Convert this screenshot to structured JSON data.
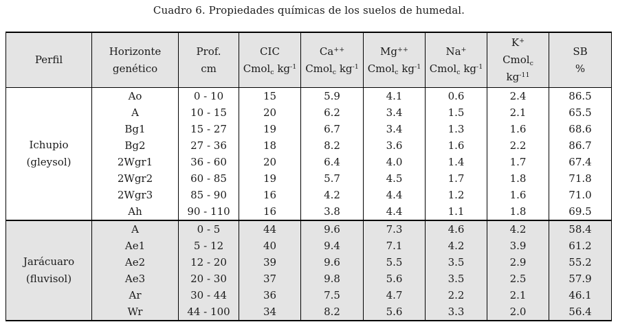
{
  "title": "Cuadro 6. Propiedades químicas de los suelos de humedal.",
  "colors": {
    "header_background": "#e4e4e4",
    "section2_background": "#e4e4e4",
    "border": "#000000",
    "text": "#1a1a1a"
  },
  "table": {
    "col_ids": [
      "horizonte",
      "prof",
      "cic",
      "ca",
      "mg",
      "na",
      "k",
      "sb"
    ],
    "headers": [
      {
        "id": "perfil",
        "lines": [
          [
            {
              "t": "Perfil"
            }
          ]
        ]
      },
      {
        "id": "horizonte-genetico",
        "lines": [
          [
            {
              "t": "Horizonte"
            }
          ],
          [
            {
              "t": "genético"
            }
          ]
        ]
      },
      {
        "id": "prof-cm",
        "lines": [
          [
            {
              "t": "Prof."
            }
          ],
          [
            {
              "t": "cm"
            }
          ]
        ]
      },
      {
        "id": "cic",
        "lines": [
          [
            {
              "t": "CIC"
            }
          ],
          [
            {
              "t": "Cmol"
            },
            {
              "t": "c",
              "s": "sub"
            },
            {
              "t": " kg"
            },
            {
              "t": "-1",
              "s": "sup"
            }
          ]
        ]
      },
      {
        "id": "ca",
        "lines": [
          [
            {
              "t": "Ca"
            },
            {
              "t": "++",
              "s": "sup"
            }
          ],
          [
            {
              "t": "Cmol"
            },
            {
              "t": "c",
              "s": "sub"
            },
            {
              "t": " kg"
            },
            {
              "t": "-1",
              "s": "sup"
            }
          ]
        ]
      },
      {
        "id": "mg",
        "lines": [
          [
            {
              "t": "Mg"
            },
            {
              "t": "++",
              "s": "sup"
            }
          ],
          [
            {
              "t": "Cmol"
            },
            {
              "t": "c",
              "s": "sub"
            },
            {
              "t": " kg"
            },
            {
              "t": "-1",
              "s": "sup"
            }
          ]
        ]
      },
      {
        "id": "na",
        "lines": [
          [
            {
              "t": "Na"
            },
            {
              "t": "+",
              "s": "sup"
            }
          ],
          [
            {
              "t": "Cmol"
            },
            {
              "t": "c",
              "s": "sub"
            },
            {
              "t": " kg"
            },
            {
              "t": "-1",
              "s": "sup"
            }
          ]
        ]
      },
      {
        "id": "k",
        "lines": [
          [
            {
              "t": "K"
            },
            {
              "t": "+",
              "s": "sup"
            }
          ],
          [
            {
              "t": "Cmol"
            },
            {
              "t": "c",
              "s": "sub"
            }
          ],
          [
            {
              "t": "kg"
            },
            {
              "t": "-11",
              "s": "sup"
            }
          ]
        ]
      },
      {
        "id": "sb",
        "lines": [
          [
            {
              "t": "SB"
            }
          ],
          [
            {
              "t": "%"
            }
          ]
        ]
      }
    ],
    "sections": [
      {
        "id": "ichupio",
        "perfil": [
          "Ichupio",
          "(gleysol)"
        ],
        "shaded": false,
        "rows": [
          [
            "Ao",
            "0 - 10",
            "15",
            "5.9",
            "4.1",
            "0.6",
            "2.4",
            "86.5"
          ],
          [
            "A",
            "10 - 15",
            "20",
            "6.2",
            "3.4",
            "1.5",
            "2.1",
            "65.5"
          ],
          [
            "Bg1",
            "15 - 27",
            "19",
            "6.7",
            "3.4",
            "1.3",
            "1.6",
            "68.6"
          ],
          [
            "Bg2",
            "27 - 36",
            "18",
            "8.2",
            "3.6",
            "1.6",
            "2.2",
            "86.7"
          ],
          [
            "2Wgr1",
            "36 - 60",
            "20",
            "6.4",
            "4.0",
            "1.4",
            "1.7",
            "67.4"
          ],
          [
            "2Wgr2",
            "60 - 85",
            "19",
            "5.7",
            "4.5",
            "1.7",
            "1.8",
            "71.8"
          ],
          [
            "2Wgr3",
            "85 - 90",
            "16",
            "4.2",
            "4.4",
            "1.2",
            "1.6",
            "71.0"
          ],
          [
            "Ah",
            "90 - 110",
            "16",
            "3.8",
            "4.4",
            "1.1",
            "1.8",
            "69.5"
          ]
        ]
      },
      {
        "id": "jaracuaro",
        "perfil": [
          "Jarácuaro",
          "(fluvisol)"
        ],
        "shaded": true,
        "rows": [
          [
            "A",
            "0 - 5",
            "44",
            "9.6",
            "7.3",
            "4.6",
            "4.2",
            "58.4"
          ],
          [
            "Ae1",
            "5 - 12",
            "40",
            "9.4",
            "7.1",
            "4.2",
            "3.9",
            "61.2"
          ],
          [
            "Ae2",
            "12 - 20",
            "39",
            "9.6",
            "5.5",
            "3.5",
            "2.9",
            "55.2"
          ],
          [
            "Ae3",
            "20 - 30",
            "37",
            "9.8",
            "5.6",
            "3.5",
            "2.5",
            "57.9"
          ],
          [
            "Ar",
            "30 - 44",
            "36",
            "7.5",
            "4.7",
            "2.2",
            "2.1",
            "46.1"
          ],
          [
            "Wr",
            "44 - 100",
            "34",
            "8.2",
            "5.6",
            "3.3",
            "2.0",
            "56.4"
          ]
        ]
      }
    ]
  }
}
